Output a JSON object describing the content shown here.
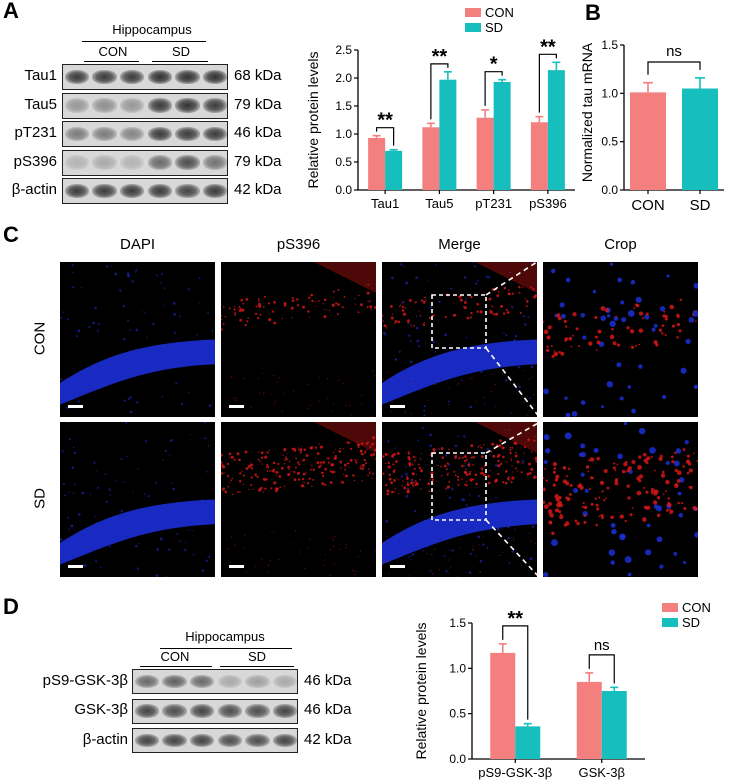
{
  "panels": {
    "A": "A",
    "B": "B",
    "C": "C",
    "D": "D"
  },
  "panelA_blot": {
    "region": "Hippocampus",
    "groups": [
      "CON",
      "SD"
    ],
    "rows": [
      {
        "label": "Tau1",
        "kda": "68 kDa",
        "intensity": [
          0.85,
          0.85,
          0.85,
          0.9,
          0.9,
          0.9
        ]
      },
      {
        "label": "Tau5",
        "kda": "79 kDa",
        "intensity": [
          0.35,
          0.4,
          0.35,
          0.85,
          0.9,
          0.85
        ]
      },
      {
        "label": "pT231",
        "kda": "46 kDa",
        "intensity": [
          0.5,
          0.5,
          0.45,
          0.85,
          0.85,
          0.85
        ]
      },
      {
        "label": "pS396",
        "kda": "79 kDa",
        "intensity": [
          0.2,
          0.25,
          0.2,
          0.6,
          0.75,
          0.55
        ]
      },
      {
        "label": "β-actin",
        "kda": "42 kDa",
        "intensity": [
          0.85,
          0.85,
          0.85,
          0.85,
          0.8,
          0.85
        ]
      }
    ]
  },
  "panelD_blot": {
    "region": "Hippocampus",
    "groups": [
      "CON",
      "SD"
    ],
    "rows": [
      {
        "label": "pS9-GSK-3β",
        "kda": "46 kDa",
        "intensity": [
          0.6,
          0.65,
          0.6,
          0.25,
          0.3,
          0.25
        ]
      },
      {
        "label": "GSK-3β",
        "kda": "46 kDa",
        "intensity": [
          0.8,
          0.75,
          0.8,
          0.75,
          0.75,
          0.8
        ]
      },
      {
        "label": "β-actin",
        "kda": "42 kDa",
        "intensity": [
          0.8,
          0.8,
          0.8,
          0.75,
          0.75,
          0.8
        ]
      }
    ]
  },
  "panelC": {
    "columns": [
      "DAPI",
      "pS396",
      "Merge",
      "Crop"
    ],
    "rows": [
      "CON",
      "SD"
    ]
  },
  "chart_data": [
    {
      "type": "bar",
      "id": "A-chart",
      "categories": [
        "Tau1",
        "Tau5",
        "pT231",
        "pS396"
      ],
      "series": [
        {
          "name": "CON",
          "color": "#f47f7f",
          "values": [
            0.93,
            1.12,
            1.29,
            1.21
          ],
          "errors": [
            0.04,
            0.07,
            0.14,
            0.1
          ]
        },
        {
          "name": "SD",
          "color": "#16bfbd",
          "values": [
            0.7,
            1.97,
            1.93,
            2.14
          ],
          "errors": [
            0.02,
            0.14,
            0.04,
            0.14
          ]
        }
      ],
      "significance": [
        "**",
        "**",
        "*",
        "**"
      ],
      "ylabel": "Relative protein levels",
      "ylim": [
        0,
        2.5
      ],
      "yticks": [
        "0.0",
        "0.5",
        "1.0",
        "1.5",
        "2.0",
        "2.5"
      ],
      "legend": "top-right"
    },
    {
      "type": "bar",
      "id": "B-chart",
      "categories": [
        "CON",
        "SD"
      ],
      "values": [
        1.01,
        1.05
      ],
      "errors": [
        0.1,
        0.11
      ],
      "colors": [
        "#f47f7f",
        "#16bfbd"
      ],
      "significance": "ns",
      "ylabel": "Normalized tau mRNA",
      "ylim": [
        0,
        1.5
      ],
      "yticks": [
        "0.0",
        "0.5",
        "1.0",
        "1.5"
      ]
    },
    {
      "type": "bar",
      "id": "D-chart",
      "categories": [
        "pS9-GSK-3β",
        "GSK-3β"
      ],
      "series": [
        {
          "name": "CON",
          "color": "#f47f7f",
          "values": [
            1.17,
            0.85
          ],
          "errors": [
            0.1,
            0.1
          ]
        },
        {
          "name": "SD",
          "color": "#16bfbd",
          "values": [
            0.36,
            0.75
          ],
          "errors": [
            0.03,
            0.04
          ]
        }
      ],
      "significance": [
        "**",
        "ns"
      ],
      "ylabel": "Relative protein levels",
      "ylim": [
        0,
        1.5
      ],
      "yticks": [
        "0.0",
        "0.5",
        "1.0",
        "1.5"
      ],
      "legend": "top-right"
    }
  ],
  "colors": {
    "con": "#f47f7f",
    "sd": "#16bfbd",
    "dapi": "#1b2fd6",
    "ps396": "#e01818"
  }
}
